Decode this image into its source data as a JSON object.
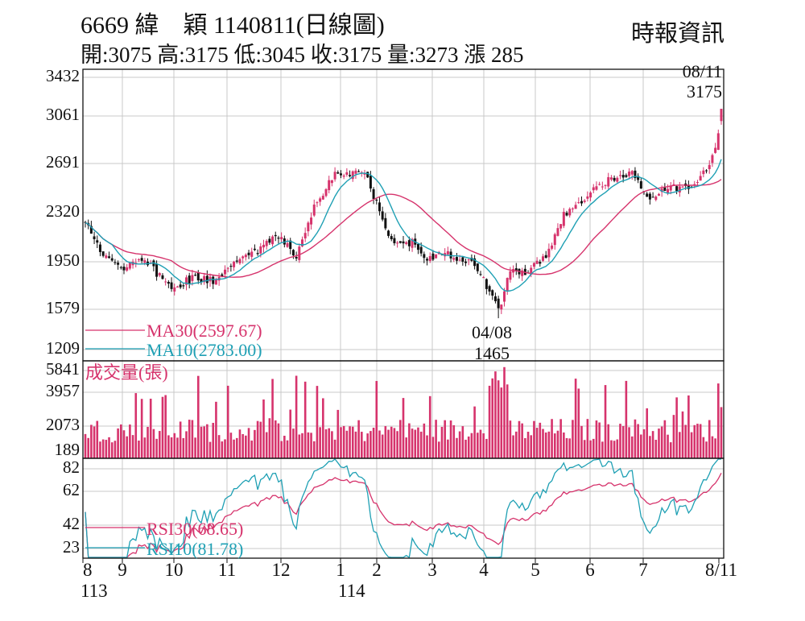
{
  "header": {
    "title": "6669 緯　穎 1140811(日線圖)",
    "source": "時報資訊",
    "ohlc": "開:3075 高:3175 低:3045 收:3175 量:3273 漲 285"
  },
  "colors": {
    "up": "#d6336c",
    "down": "#111111",
    "ma30": "#d6336c",
    "ma10": "#1fa0b4",
    "volume": "#d6336c",
    "rsi30": "#d6336c",
    "rsi10": "#1fa0b4",
    "grid": "#c8c8c8"
  },
  "chart_data": [
    {
      "type": "candlestick",
      "panel": "price",
      "y_ticks": [
        "3432",
        "3061",
        "2691",
        "2320",
        "1950",
        "1579",
        "1209"
      ],
      "ylim": [
        1209,
        3432
      ],
      "x_ticks": [
        "8",
        "9",
        "10",
        "11",
        "12",
        "1",
        "2",
        "3",
        "4",
        "5",
        "6",
        "7",
        "8/11"
      ],
      "year_labels": [
        "113",
        "114"
      ],
      "start_close": 2250,
      "waypoints": [
        [
          0,
          2250
        ],
        [
          6,
          1990
        ],
        [
          12,
          1870
        ],
        [
          20,
          1930
        ],
        [
          29,
          1720
        ],
        [
          37,
          1800
        ],
        [
          43,
          1770
        ],
        [
          50,
          1920
        ],
        [
          58,
          2020
        ],
        [
          64,
          2150
        ],
        [
          71,
          1980
        ],
        [
          77,
          2380
        ],
        [
          84,
          2650
        ],
        [
          89,
          2620
        ],
        [
          92,
          2680
        ],
        [
          95,
          2600
        ],
        [
          99,
          2340
        ],
        [
          103,
          2080
        ],
        [
          110,
          2080
        ],
        [
          115,
          1960
        ],
        [
          122,
          1990
        ],
        [
          130,
          1920
        ],
        [
          136,
          1700
        ],
        [
          139,
          1520
        ],
        [
          143,
          1850
        ],
        [
          149,
          1850
        ],
        [
          155,
          1970
        ],
        [
          161,
          2300
        ],
        [
          168,
          2450
        ],
        [
          175,
          2580
        ],
        [
          180,
          2600
        ],
        [
          184,
          2640
        ],
        [
          189,
          2440
        ],
        [
          197,
          2540
        ],
        [
          204,
          2530
        ],
        [
          209,
          2680
        ],
        [
          212,
          2830
        ],
        [
          214,
          3175
        ]
      ],
      "series": [
        {
          "name": "MA30",
          "value_label": "MA30(2597.67)",
          "window": 30
        },
        {
          "name": "MA10",
          "value_label": "MA10(2783.00)",
          "window": 10
        }
      ],
      "annotations": [
        {
          "date": "08/11",
          "price": "3175",
          "position": "top-right"
        },
        {
          "date": "04/08",
          "price": "1465",
          "position": "below-low"
        }
      ]
    },
    {
      "type": "bar",
      "panel": "volume",
      "label": "成交量(張)",
      "y_ticks": [
        "5841",
        "3957",
        "2073",
        "189"
      ],
      "ylim": [
        189,
        5841
      ],
      "last_value": 3273
    },
    {
      "type": "line",
      "panel": "rsi",
      "y_ticks": [
        "82",
        "62",
        "42",
        "23"
      ],
      "ylim": [
        20,
        85
      ],
      "series": [
        {
          "name": "RSI30",
          "value_label": "RSI30(68.65)",
          "last": 68.65
        },
        {
          "name": "RSI10",
          "value_label": "RSI10(81.78)",
          "last": 81.78
        }
      ]
    }
  ]
}
